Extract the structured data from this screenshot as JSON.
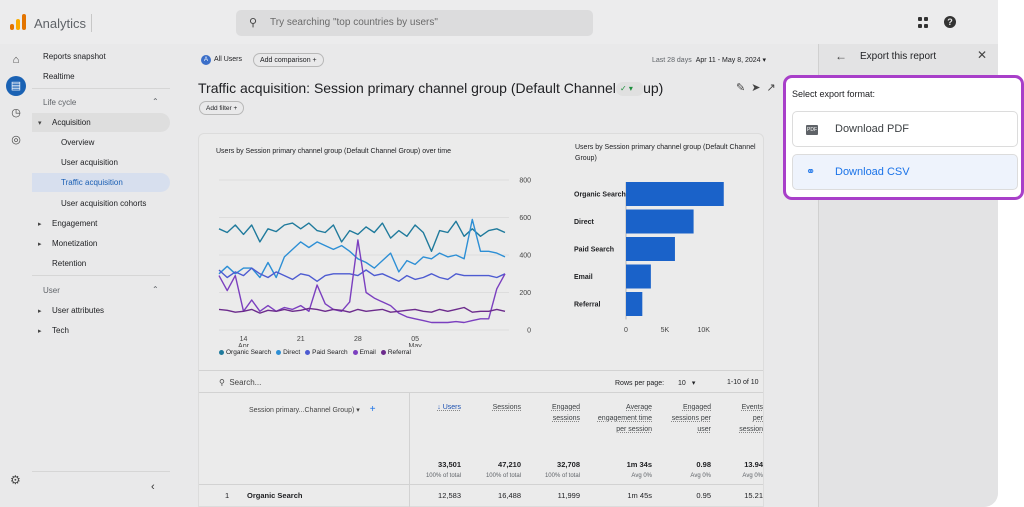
{
  "app": {
    "name": "Analytics"
  },
  "search": {
    "placeholder": "Try searching \"top countries by users\""
  },
  "sidebar": {
    "items": [
      {
        "label": "Reports snapshot"
      },
      {
        "label": "Realtime"
      },
      {
        "label": "Life cycle"
      },
      {
        "label": "Acquisition"
      },
      {
        "label": "Overview"
      },
      {
        "label": "User acquisition"
      },
      {
        "label": "Traffic acquisition"
      },
      {
        "label": "User acquisition cohorts"
      },
      {
        "label": "Engagement"
      },
      {
        "label": "Monetization"
      },
      {
        "label": "Retention"
      },
      {
        "label": "User"
      },
      {
        "label": "User attributes"
      },
      {
        "label": "Tech"
      }
    ]
  },
  "header": {
    "segment_initial": "A",
    "segment": "All Users",
    "add_comparison": "Add comparison",
    "date_label": "Last 28 days",
    "date_range": "Apr 11 - May 8, 2024",
    "title": "Traffic acquisition: Session primary channel group (Default Channel Group)",
    "add_filter": "Add filter"
  },
  "line_chart": {
    "title": "Users by Session primary channel group (Default Channel Group) over time"
  },
  "bar_chart": {
    "title": "Users by Session primary channel group (Default Channel Group)"
  },
  "chart_data": [
    {
      "type": "line",
      "x_ticks": [
        {
          "day": "14",
          "month": "Apr"
        },
        {
          "day": "21",
          "month": ""
        },
        {
          "day": "28",
          "month": ""
        },
        {
          "day": "05",
          "month": "May"
        }
      ],
      "ylim": [
        0,
        800
      ],
      "y_ticks": [
        "800",
        "600",
        "400",
        "200",
        "0"
      ],
      "series": [
        {
          "name": "Organic Search",
          "color": "#1f7a9c",
          "values": [
            540,
            520,
            560,
            510,
            560,
            470,
            540,
            525,
            560,
            570,
            540,
            570,
            530,
            520,
            560,
            470,
            530,
            510,
            550,
            520,
            570,
            490,
            530,
            500,
            560,
            520,
            420,
            530,
            520,
            580,
            500,
            540,
            500,
            530,
            540,
            520
          ]
        },
        {
          "name": "Direct",
          "color": "#2d8fd5",
          "values": [
            300,
            340,
            300,
            330,
            330,
            280,
            360,
            280,
            390,
            430,
            470,
            440,
            470,
            450,
            430,
            450,
            420,
            380,
            360,
            330,
            370,
            410,
            310,
            370,
            350,
            390,
            380,
            410,
            390,
            400,
            380,
            590,
            420,
            420,
            410,
            390
          ]
        },
        {
          "name": "Paid Search",
          "color": "#4d5bd1",
          "values": [
            320,
            280,
            310,
            290,
            330,
            300,
            280,
            310,
            290,
            270,
            300,
            290,
            260,
            290,
            300,
            300,
            300,
            290,
            320,
            290,
            300,
            280,
            260,
            290,
            270,
            280,
            300,
            280,
            270,
            300,
            290,
            290,
            290,
            290,
            280,
            300
          ]
        },
        {
          "name": "Email",
          "color": "#7b3fbf",
          "values": [
            290,
            210,
            290,
            100,
            160,
            100,
            130,
            100,
            120,
            110,
            130,
            100,
            240,
            140,
            110,
            100,
            150,
            480,
            200,
            170,
            150,
            130,
            90,
            70,
            60,
            50,
            40,
            40,
            40,
            45,
            40,
            50,
            60,
            60,
            220,
            300
          ]
        },
        {
          "name": "Referral",
          "color": "#6c2b8c",
          "values": [
            110,
            105,
            95,
            100,
            110,
            90,
            105,
            100,
            110,
            100,
            105,
            115,
            110,
            100,
            110,
            105,
            95,
            110,
            100,
            105,
            110,
            95,
            100,
            105,
            110,
            100,
            95,
            110,
            100,
            110,
            120,
            95,
            100,
            100,
            110,
            100
          ]
        }
      ]
    },
    {
      "type": "bar",
      "orientation": "horizontal",
      "categories": [
        "Organic Search",
        "Direct",
        "Paid Search",
        "Email",
        "Referral"
      ],
      "values": [
        12583,
        8700,
        6300,
        3200,
        2100
      ],
      "xlim": [
        0,
        13000
      ],
      "x_ticks": [
        {
          "label": "0",
          "value": 0
        },
        {
          "label": "5K",
          "value": 5000
        },
        {
          "label": "10K",
          "value": 10000
        }
      ],
      "color": "#1a62c9"
    }
  ],
  "table": {
    "search_placeholder": "Search...",
    "rows_per_page_label": "Rows per page:",
    "rows_per_page": "10",
    "range": "1-10 of 10",
    "dimension_header": "Session primary...Channel Group)",
    "columns": [
      {
        "label": "↓ Users",
        "total": "33,501",
        "pct": "100% of total"
      },
      {
        "label": "Sessions",
        "total": "47,210",
        "pct": "100% of total"
      },
      {
        "label": "Engaged sessions",
        "total": "32,708",
        "pct": "100% of total"
      },
      {
        "label": "Average engagement time per session",
        "total": "1m 34s",
        "pct": "Avg 0%"
      },
      {
        "label": "Engaged sessions per user",
        "total": "0.98",
        "pct": "Avg 0%"
      },
      {
        "label": "Events per session",
        "total": "13.94",
        "pct": "Avg 0%"
      }
    ],
    "rows": [
      {
        "rank": "1",
        "name": "Organic Search",
        "values": [
          "12,583",
          "16,488",
          "11,999",
          "1m 45s",
          "0.95",
          "15.21"
        ]
      }
    ]
  },
  "export_panel": {
    "title": "Export this report",
    "prompt": "Select export format:",
    "pdf_icon": "PDF",
    "pdf_label": "Download PDF",
    "csv_label": "Download CSV"
  },
  "colors": {
    "accent": "#1a73e8",
    "highlight_border": "#a83fc9",
    "bar": "#1a62c9"
  }
}
